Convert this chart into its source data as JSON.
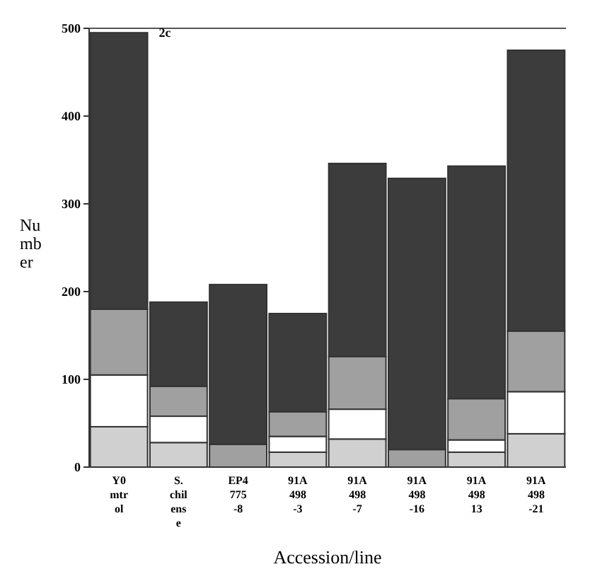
{
  "chart_data": {
    "type": "bar",
    "stacked": true,
    "xlabel": "Accession/line",
    "ylabel": "Number",
    "annotations": [
      "2c"
    ],
    "categories": [
      "Y0\nmtr\nol",
      "S.\nchil\nens\ne",
      "EP4\n775\n-8",
      "91A\n498\n-3",
      "91A\n498\n-7",
      "91A\n498\n-16",
      "91A\n498\n13",
      "91A\n498\n-21"
    ],
    "series": [
      {
        "color": "#d0d0d0",
        "values": [
          46,
          28,
          0,
          17,
          32,
          0,
          17,
          38
        ]
      },
      {
        "color": "#ffffff",
        "values": [
          59,
          30,
          0,
          18,
          34,
          0,
          14,
          48
        ]
      },
      {
        "color": "#a0a0a0",
        "values": [
          75,
          34,
          26,
          28,
          60,
          20,
          47,
          69
        ]
      },
      {
        "color": "#3c3c3c",
        "values": [
          315,
          96,
          182,
          112,
          220,
          309,
          265,
          320
        ]
      }
    ],
    "ylim": [
      0,
      500
    ],
    "yticks": [
      0,
      100,
      200,
      300,
      400,
      500
    ]
  }
}
